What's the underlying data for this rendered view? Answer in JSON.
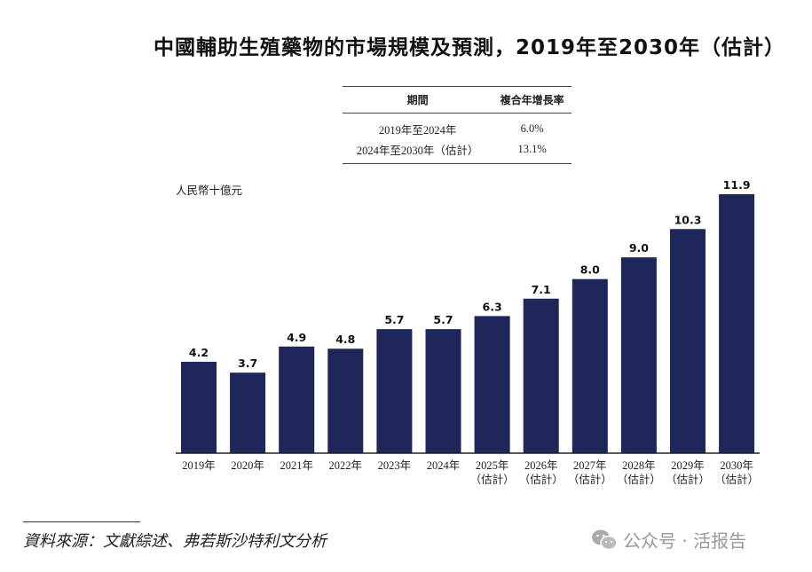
{
  "title": "中國輔助生殖藥物的市場規模及預測，2019年至2030年（估計）",
  "cagr_table": {
    "headers": [
      "期間",
      "複合年增長率"
    ],
    "rows": [
      [
        "2019年至2024年",
        "6.0%"
      ],
      [
        "2024年至2030年（估計）",
        "13.1%"
      ]
    ]
  },
  "chart_data": {
    "type": "bar",
    "title": "中國輔助生殖藥物的市場規模及預測，2019年至2030年（估計）",
    "ylabel": "人民幣十億元",
    "categories": [
      "2019年",
      "2020年",
      "2021年",
      "2022年",
      "2023年",
      "2024年",
      "2025年",
      "2026年",
      "2027年",
      "2028年",
      "2029年",
      "2030年"
    ],
    "category_sublabels": [
      "",
      "",
      "",
      "",
      "",
      "",
      "（估計）",
      "（估計）",
      "（估計）",
      "（估計）",
      "（估計）",
      "（估計）"
    ],
    "values": [
      4.2,
      3.7,
      4.9,
      4.8,
      5.7,
      5.7,
      6.3,
      7.1,
      8.0,
      9.0,
      10.3,
      11.9
    ],
    "value_labels": [
      "4.2",
      "3.7",
      "4.9",
      "4.8",
      "5.7",
      "5.7",
      "6.3",
      "7.1",
      "8.0",
      "9.0",
      "10.3",
      "11.9"
    ],
    "ylim": [
      0,
      12
    ],
    "grid": false,
    "bar_color": "#1f2659"
  },
  "source": "資料來源：文獻綜述、弗若斯沙特利文分析",
  "watermark": "公众号 · 活报告"
}
